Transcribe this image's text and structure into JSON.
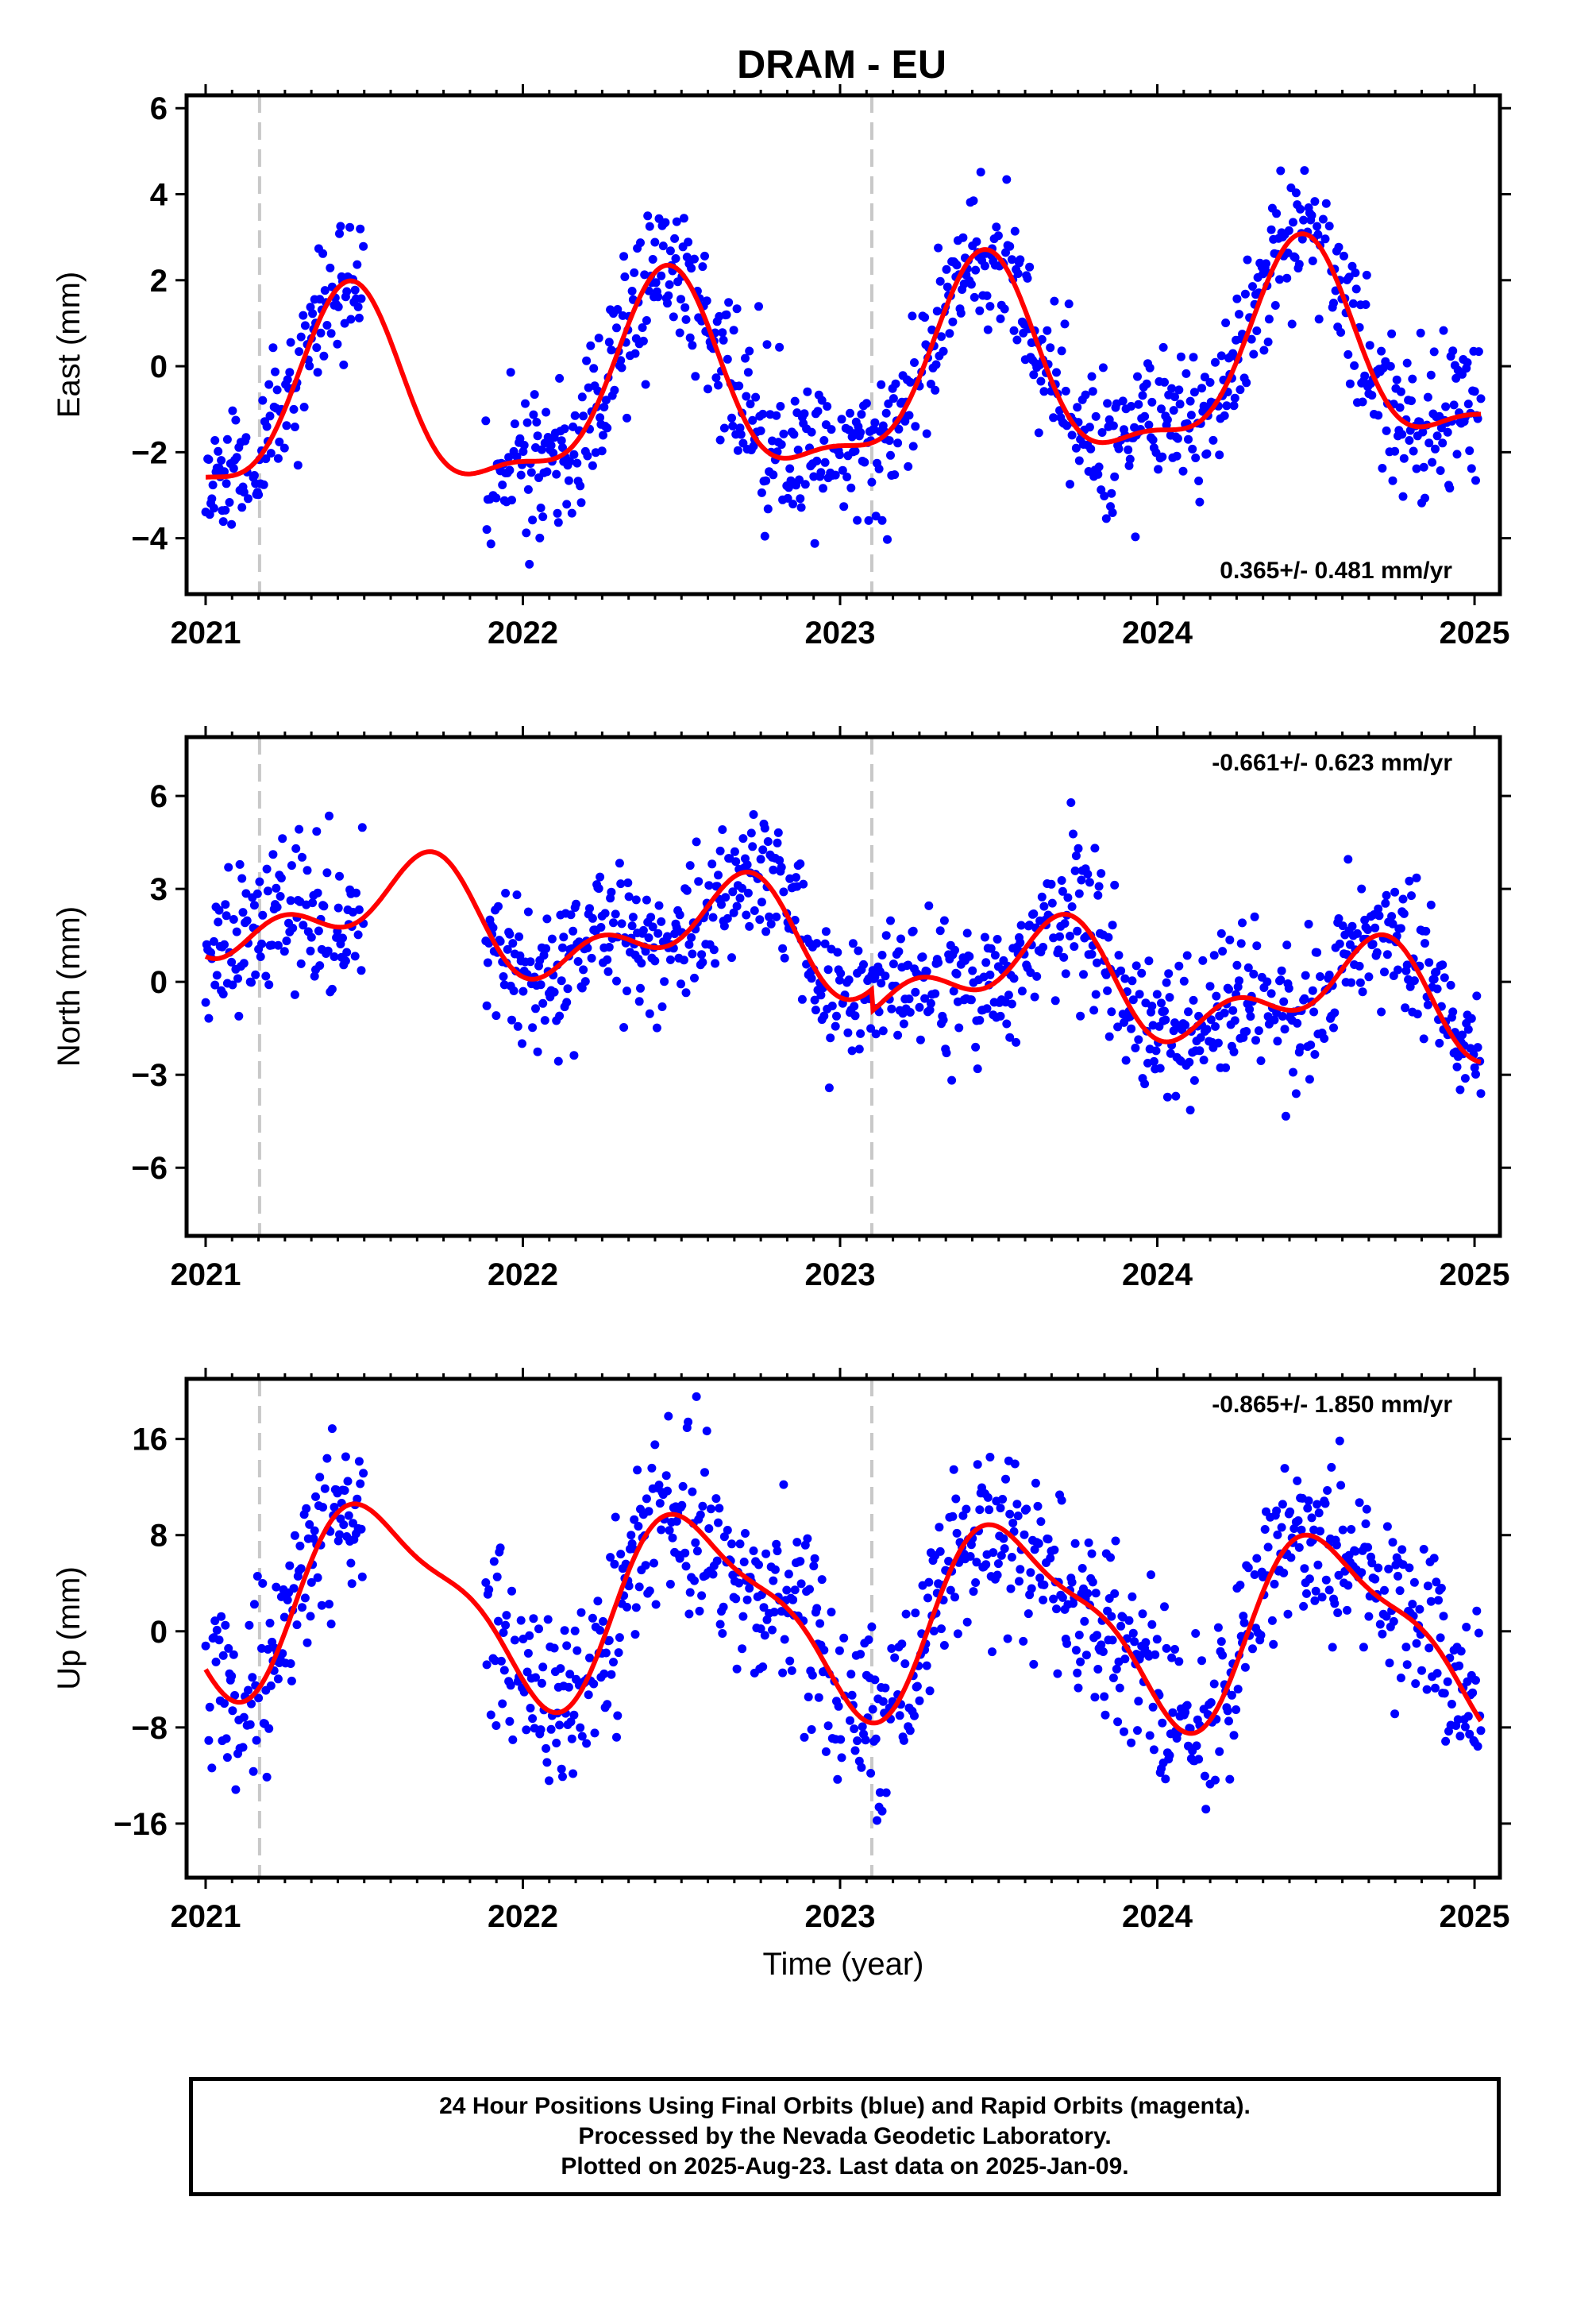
{
  "title": "DRAM - EU",
  "footer": {
    "line1": "24 Hour Positions Using Final Orbits (blue) and Rapid Orbits (magenta).",
    "line2": "Processed by the Nevada Geodetic Laboratory.",
    "line3": "Plotted on 2025-Aug-23. Last data on 2025-Jan-09."
  },
  "colors": {
    "points": "#0000ff",
    "model": "#ff0000",
    "event_lines": "#c8c8c8"
  },
  "chart_data": [
    {
      "type": "scatter",
      "panel": "east",
      "ylabel": "East (mm)",
      "xlabel": "",
      "rate_label": "0.365+/- 0.481 mm/yr",
      "xlim": [
        2020.94,
        2025.08
      ],
      "ylim": [
        -5.3,
        6.3
      ],
      "xticks": [
        2021,
        2022,
        2023,
        2024,
        2025
      ],
      "xtick_labels": [
        "2021",
        "2022",
        "2023",
        "2024",
        "2025"
      ],
      "yticks": [
        -4,
        -2,
        0,
        2,
        4,
        6
      ],
      "ytick_labels": [
        "−4",
        "−2",
        "0",
        "2",
        "4",
        "6"
      ],
      "event_lines": [
        2021.17,
        2023.1
      ],
      "gap": [
        2021.5,
        2021.88
      ],
      "fit_params": {
        "offset": -0.4,
        "rate": 0.365,
        "a1": 0.7,
        "b1": -2.1,
        "a2": -0.35,
        "b2": 0.65,
        "step": 0.0,
        "step_epoch": 2023.1,
        "start": 2021.0,
        "end": 2025.02
      },
      "scatter": {
        "sigma": 0.85,
        "seed": 11
      },
      "series": [
        {
          "name": "Final Orbits",
          "kind": "points",
          "x_range": [
            2021.0,
            2025.02
          ],
          "n_points": 1230
        },
        {
          "name": "Model",
          "kind": "line"
        }
      ]
    },
    {
      "type": "scatter",
      "panel": "north",
      "ylabel": "North (mm)",
      "xlabel": "",
      "rate_label": "-0.661+/- 0.623 mm/yr",
      "xlim": [
        2020.94,
        2025.08
      ],
      "ylim": [
        -8.2,
        7.9
      ],
      "xticks": [
        2021,
        2022,
        2023,
        2024,
        2025
      ],
      "xtick_labels": [
        "2021",
        "2022",
        "2023",
        "2024",
        "2025"
      ],
      "yticks": [
        -6,
        -3,
        0,
        3,
        6
      ],
      "ytick_labels": [
        "−6",
        "−3",
        "0",
        "3",
        "6"
      ],
      "event_lines": [
        2021.17,
        2023.1
      ],
      "gap": [
        2021.5,
        2021.88
      ],
      "fit_params": {
        "offset": 1.2,
        "rate": -0.661,
        "a1": -1.1,
        "b1": -0.8,
        "a2": 0.2,
        "b2": -0.9,
        "step": -0.7,
        "step_epoch": 2023.1,
        "start": 2021.0,
        "end": 2025.02
      },
      "scatter": {
        "sigma": 1.15,
        "seed": 23
      },
      "series": [
        {
          "name": "Final Orbits",
          "kind": "points",
          "x_range": [
            2021.0,
            2025.02
          ],
          "n_points": 1230
        },
        {
          "name": "Model",
          "kind": "line"
        }
      ]
    },
    {
      "type": "scatter",
      "panel": "up",
      "ylabel": "Up (mm)",
      "xlabel": "Time (year)",
      "rate_label": "-0.865+/- 1.850 mm/yr",
      "xlim": [
        2020.94,
        2025.08
      ],
      "ylim": [
        -20.5,
        21.0
      ],
      "xticks": [
        2021,
        2022,
        2023,
        2024,
        2025
      ],
      "xtick_labels": [
        "2021",
        "2022",
        "2023",
        "2024",
        "2025"
      ],
      "yticks": [
        -16,
        -8,
        0,
        8,
        16
      ],
      "ytick_labels": [
        "−16",
        "−8",
        "0",
        "8",
        "16"
      ],
      "event_lines": [
        2021.17,
        2023.1
      ],
      "gap": [
        2021.5,
        2021.88
      ],
      "fit_params": {
        "offset": 1.5,
        "rate": -0.865,
        "a1": -2.5,
        "b1": -7.0,
        "a2": -2.2,
        "b2": 0.6,
        "step": 0.0,
        "step_epoch": 2023.1,
        "start": 2021.0,
        "end": 2025.02
      },
      "scatter": {
        "sigma": 3.6,
        "seed": 37
      },
      "series": [
        {
          "name": "Final Orbits",
          "kind": "points",
          "x_range": [
            2021.0,
            2025.02
          ],
          "n_points": 1230
        },
        {
          "name": "Model",
          "kind": "line"
        }
      ]
    }
  ]
}
